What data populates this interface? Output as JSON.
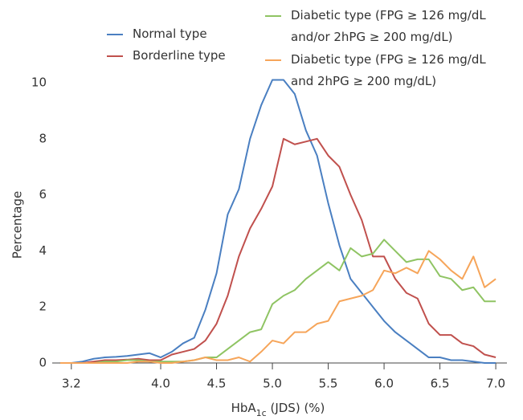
{
  "chart_data": {
    "type": "line",
    "ylabel": "Percentage",
    "xlabel_parts": [
      "HbA",
      "1c",
      " (JDS) (%)"
    ],
    "x": [
      3.1,
      3.2,
      3.3,
      3.4,
      3.5,
      3.6,
      3.7,
      3.8,
      3.9,
      4.0,
      4.1,
      4.2,
      4.3,
      4.4,
      4.5,
      4.6,
      4.7,
      4.8,
      4.9,
      5.0,
      5.1,
      5.2,
      5.3,
      5.4,
      5.5,
      5.6,
      5.7,
      5.8,
      5.9,
      6.0,
      6.1,
      6.2,
      6.3,
      6.4,
      6.5,
      6.6,
      6.7,
      6.8,
      6.9,
      7.0
    ],
    "series": [
      {
        "name": "Normal type",
        "color": "#4a7fc1",
        "values": [
          0,
          0,
          0.05,
          0.15,
          0.2,
          0.22,
          0.25,
          0.3,
          0.35,
          0.2,
          0.4,
          0.7,
          0.9,
          1.9,
          3.2,
          5.3,
          6.2,
          8.0,
          9.2,
          10.1,
          10.1,
          9.6,
          8.3,
          7.4,
          5.7,
          4.2,
          3.0,
          2.5,
          2.0,
          1.5,
          1.1,
          0.8,
          0.5,
          0.2,
          0.2,
          0.1,
          0.1,
          0.05,
          0,
          0
        ]
      },
      {
        "name": "Borderline  type",
        "color": "#c0504d",
        "values": [
          0,
          0,
          0,
          0.05,
          0.1,
          0.1,
          0.12,
          0.15,
          0.1,
          0.1,
          0.3,
          0.4,
          0.5,
          0.8,
          1.4,
          2.4,
          3.8,
          4.8,
          5.5,
          6.3,
          8.0,
          7.8,
          7.9,
          8.0,
          7.4,
          7.0,
          6.0,
          5.1,
          3.8,
          3.8,
          3.0,
          2.5,
          2.3,
          1.4,
          1.0,
          1.0,
          0.7,
          0.6,
          0.3,
          0.2
        ]
      },
      {
        "name": "Diabetic type (FPG ≥ 126 mg/dL and/or 2hPG ≥ 200 mg/dL)",
        "color": "#8fc463",
        "values": [
          0,
          0,
          0,
          0,
          0.05,
          0.05,
          0.1,
          0.1,
          0.05,
          0.05,
          0.05,
          0.05,
          0.1,
          0.2,
          0.2,
          0.5,
          0.8,
          1.1,
          1.2,
          2.1,
          2.4,
          2.6,
          3.0,
          3.3,
          3.6,
          3.3,
          4.1,
          3.8,
          3.9,
          4.4,
          4.0,
          3.6,
          3.7,
          3.7,
          3.1,
          3.0,
          2.6,
          2.7,
          2.2,
          2.2
        ]
      },
      {
        "name": "Diabetic type (FPG ≥ 126 mg/dL and 2hPG ≥ 200 mg/dL)",
        "color": "#f6a55a",
        "values": [
          0,
          0,
          0,
          0,
          0,
          0,
          0,
          0.05,
          0.05,
          0,
          0,
          0.05,
          0.1,
          0.2,
          0.1,
          0.1,
          0.2,
          0.05,
          0.4,
          0.8,
          0.7,
          1.1,
          1.1,
          1.4,
          1.5,
          2.2,
          2.3,
          2.4,
          2.6,
          3.3,
          3.2,
          3.4,
          3.2,
          4.0,
          3.7,
          3.3,
          3.0,
          3.8,
          2.7,
          3.0
        ]
      }
    ],
    "xlim": [
      3.0,
      7.1
    ],
    "xticks": [
      3.2,
      {
        "value": 4,
        "label": "4.0"
      },
      4.5,
      {
        "value": 5,
        "label": "5.0"
      },
      5.5,
      {
        "value": 6,
        "label": "6.0"
      },
      6.5,
      {
        "value": 7,
        "label": "7.0"
      }
    ],
    "ylim": [
      0,
      10
    ],
    "yticks": [
      0,
      2,
      4,
      6,
      8,
      10
    ],
    "grid": false
  }
}
